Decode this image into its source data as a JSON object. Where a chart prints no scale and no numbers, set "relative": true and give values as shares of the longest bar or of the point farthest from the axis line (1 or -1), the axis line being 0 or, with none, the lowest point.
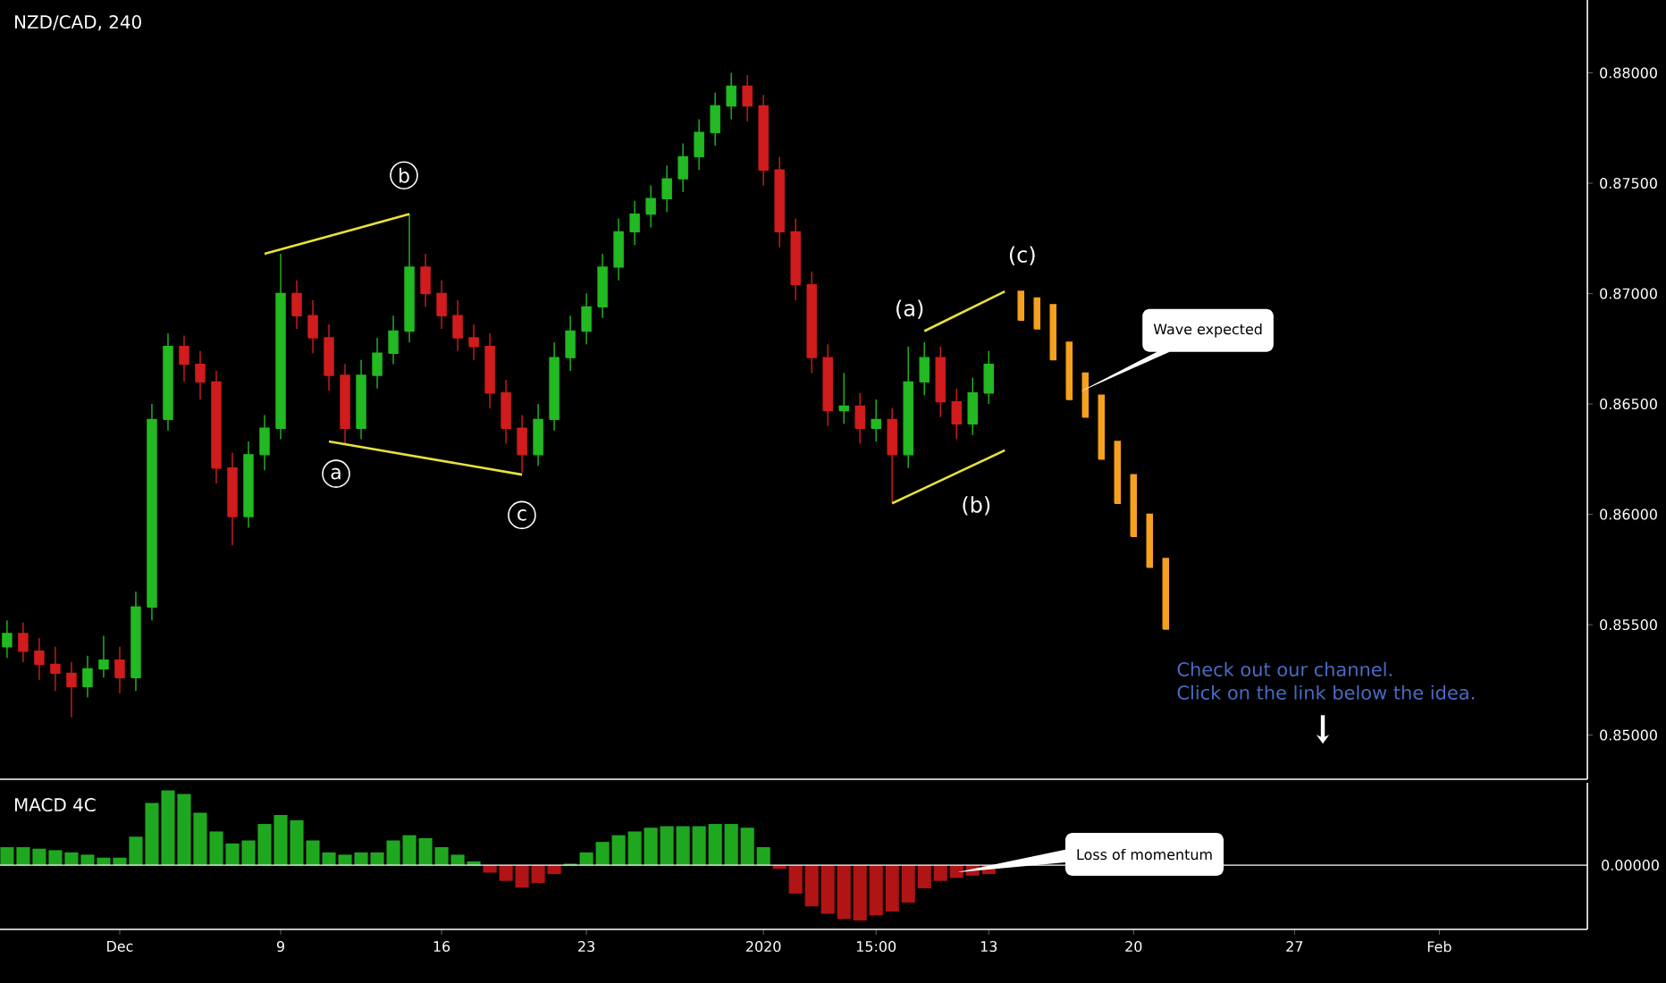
{
  "chart_data": [
    {
      "type": "candlestick",
      "title": "NZD/CAD, 240",
      "ylim": [
        0.848,
        0.8833
      ],
      "categories": [
        null,
        null,
        null,
        null,
        null,
        null,
        null,
        null,
        null,
        null,
        null,
        null,
        null,
        null,
        null,
        null,
        null,
        null,
        null,
        null,
        null,
        null,
        null,
        null,
        null,
        null,
        null,
        null,
        null,
        null,
        null,
        null,
        null,
        null,
        null,
        null,
        null,
        null,
        null,
        null,
        null,
        null,
        null,
        null,
        null,
        null,
        null,
        null,
        null,
        null,
        null,
        null,
        null,
        null,
        null,
        null,
        null,
        null,
        null,
        null,
        null,
        null,
        null,
        null,
        null,
        null,
        null,
        null,
        null,
        null,
        null,
        null,
        null,
        null,
        null,
        null,
        null,
        null,
        null,
        null,
        null,
        null,
        null,
        null,
        null,
        null,
        null,
        null,
        null,
        null,
        null,
        null,
        null,
        null,
        null,
        null,
        null,
        null,
        null
      ],
      "yticks": [
        {
          "value": 0.85,
          "label": "0.85000"
        },
        {
          "value": 0.855,
          "label": "0.85500"
        },
        {
          "value": 0.86,
          "label": "0.86000"
        },
        {
          "value": 0.865,
          "label": "0.86500"
        },
        {
          "value": 0.87,
          "label": "0.87000"
        },
        {
          "value": 0.875,
          "label": "0.87500"
        },
        {
          "value": 0.88,
          "label": "0.88000"
        }
      ],
      "tick_labels": "y",
      "series": [
        {
          "type": "candlestick",
          "ohlc": [
            [
              0.854,
              0.8552,
              0.8535,
              0.8546
            ],
            [
              0.8546,
              0.8551,
              0.8533,
              0.8538
            ],
            [
              0.8538,
              0.8544,
              0.8525,
              0.8532
            ],
            [
              0.8532,
              0.854,
              0.852,
              0.8528
            ],
            [
              0.8528,
              0.8533,
              0.8508,
              0.8522
            ],
            [
              0.8522,
              0.8536,
              0.8517,
              0.853
            ],
            [
              0.853,
              0.8545,
              0.8526,
              0.8534
            ],
            [
              0.8534,
              0.854,
              0.8519,
              0.8526
            ],
            [
              0.8526,
              0.8565,
              0.852,
              0.8558
            ],
            [
              0.8558,
              0.865,
              0.8552,
              0.8643
            ],
            [
              0.8643,
              0.8682,
              0.8638,
              0.8676
            ],
            [
              0.8676,
              0.8681,
              0.866,
              0.8668
            ],
            [
              0.8668,
              0.8674,
              0.8652,
              0.866
            ],
            [
              0.866,
              0.8665,
              0.8614,
              0.8621
            ],
            [
              0.8621,
              0.8628,
              0.8586,
              0.8599
            ],
            [
              0.8599,
              0.8633,
              0.8594,
              0.8627
            ],
            [
              0.8627,
              0.8645,
              0.862,
              0.8639
            ],
            [
              0.8639,
              0.8718,
              0.8634,
              0.87
            ],
            [
              0.87,
              0.8706,
              0.8684,
              0.869
            ],
            [
              0.869,
              0.8697,
              0.8673,
              0.868
            ],
            [
              0.868,
              0.8686,
              0.8656,
              0.8663
            ],
            [
              0.8663,
              0.8668,
              0.8632,
              0.8639
            ],
            [
              0.8639,
              0.867,
              0.8634,
              0.8663
            ],
            [
              0.8663,
              0.868,
              0.8657,
              0.8673
            ],
            [
              0.8673,
              0.869,
              0.8668,
              0.8683
            ],
            [
              0.8683,
              0.8736,
              0.8678,
              0.8712
            ],
            [
              0.8712,
              0.8718,
              0.8694,
              0.87
            ],
            [
              0.87,
              0.8706,
              0.8684,
              0.869
            ],
            [
              0.869,
              0.8697,
              0.8674,
              0.868
            ],
            [
              0.868,
              0.8686,
              0.867,
              0.8676
            ],
            [
              0.8676,
              0.8682,
              0.8648,
              0.8655
            ],
            [
              0.8655,
              0.8661,
              0.8632,
              0.8639
            ],
            [
              0.8639,
              0.8645,
              0.8619,
              0.8627
            ],
            [
              0.8627,
              0.865,
              0.8622,
              0.8643
            ],
            [
              0.8643,
              0.8678,
              0.8638,
              0.8671
            ],
            [
              0.8671,
              0.869,
              0.8665,
              0.8683
            ],
            [
              0.8683,
              0.87,
              0.8677,
              0.8694
            ],
            [
              0.8694,
              0.8718,
              0.8689,
              0.8712
            ],
            [
              0.8712,
              0.8734,
              0.8706,
              0.8728
            ],
            [
              0.8728,
              0.8742,
              0.8722,
              0.8736
            ],
            [
              0.8736,
              0.8749,
              0.873,
              0.8743
            ],
            [
              0.8743,
              0.8758,
              0.8737,
              0.8752
            ],
            [
              0.8752,
              0.8768,
              0.8746,
              0.8762
            ],
            [
              0.8762,
              0.8779,
              0.8756,
              0.8773
            ],
            [
              0.8773,
              0.8791,
              0.8767,
              0.8785
            ],
            [
              0.8785,
              0.88,
              0.8779,
              0.8794
            ],
            [
              0.8794,
              0.8799,
              0.8778,
              0.8785
            ],
            [
              0.8785,
              0.879,
              0.8749,
              0.8756
            ],
            [
              0.8756,
              0.8762,
              0.8721,
              0.8728
            ],
            [
              0.8728,
              0.8734,
              0.8697,
              0.8704
            ],
            [
              0.8704,
              0.871,
              0.8664,
              0.8671
            ],
            [
              0.8671,
              0.8677,
              0.864,
              0.8647
            ],
            [
              0.8647,
              0.8664,
              0.8641,
              0.8649
            ],
            [
              0.8649,
              0.8655,
              0.8632,
              0.8639
            ],
            [
              0.8639,
              0.8652,
              0.8633,
              0.8643
            ],
            [
              0.8643,
              0.8648,
              0.8605,
              0.8627
            ],
            [
              0.8627,
              0.8676,
              0.8621,
              0.866
            ],
            [
              0.866,
              0.8678,
              0.8654,
              0.8671
            ],
            [
              0.8671,
              0.8676,
              0.8644,
              0.8651
            ],
            [
              0.8651,
              0.8657,
              0.8634,
              0.8641
            ],
            [
              0.8641,
              0.8662,
              0.8636,
              0.8655
            ],
            [
              0.8655,
              0.8674,
              0.865,
              0.8668
            ],
            null,
            null,
            null,
            null,
            null,
            null,
            null,
            null,
            null,
            null,
            null,
            null,
            null,
            null,
            null,
            null,
            null,
            null,
            null,
            null,
            null,
            null,
            null,
            null,
            null,
            null,
            null,
            null,
            null,
            null,
            null,
            null,
            null,
            null,
            null,
            null,
            null
          ],
          "colors": [
            "#22b922",
            "#d01c1c",
            "#d01c1c",
            "#d01c1c",
            "#d01c1c",
            "#22b922",
            "#22b922",
            "#d01c1c",
            "#22b922",
            "#22b922",
            "#22b922",
            "#d01c1c",
            "#d01c1c",
            "#d01c1c",
            "#d01c1c",
            "#22b922",
            "#22b922",
            "#22b922",
            "#d01c1c",
            "#d01c1c",
            "#d01c1c",
            "#d01c1c",
            "#22b922",
            "#22b922",
            "#22b922",
            "#22b922",
            "#d01c1c",
            "#d01c1c",
            "#d01c1c",
            "#d01c1c",
            "#d01c1c",
            "#d01c1c",
            "#d01c1c",
            "#22b922",
            "#22b922",
            "#22b922",
            "#22b922",
            "#22b922",
            "#22b922",
            "#22b922",
            "#22b922",
            "#22b922",
            "#22b922",
            "#22b922",
            "#22b922",
            "#22b922",
            "#d01c1c",
            "#d01c1c",
            "#d01c1c",
            "#d01c1c",
            "#d01c1c",
            "#d01c1c",
            "#22b922",
            "#d01c1c",
            "#22b922",
            "#d01c1c",
            "#22b922",
            "#22b922",
            "#d01c1c",
            "#d01c1c",
            "#22b922",
            "#22b922",
            null,
            null,
            null,
            null,
            null,
            null,
            null,
            null,
            null,
            null,
            null,
            null,
            null,
            null,
            null,
            null,
            null,
            null,
            null,
            null,
            null,
            null,
            null,
            null,
            null,
            null,
            null,
            null,
            null,
            null,
            null,
            null,
            null,
            null,
            null,
            null,
            null
          ]
        },
        {
          "type": "candlestick",
          "color": "#f5a11f",
          "ohlc": [
            null,
            null,
            null,
            null,
            null,
            null,
            null,
            null,
            null,
            null,
            null,
            null,
            null,
            null,
            null,
            null,
            null,
            null,
            null,
            null,
            null,
            null,
            null,
            null,
            null,
            null,
            null,
            null,
            null,
            null,
            null,
            null,
            null,
            null,
            null,
            null,
            null,
            null,
            null,
            null,
            null,
            null,
            null,
            null,
            null,
            null,
            null,
            null,
            null,
            null,
            null,
            null,
            null,
            null,
            null,
            null,
            null,
            null,
            null,
            null,
            null,
            null,
            null,
            [
              0.8701,
              0.8701,
              0.8688,
              0.8688
            ],
            [
              0.8698,
              0.8698,
              0.8684,
              0.8684
            ],
            [
              0.8695,
              0.8695,
              0.867,
              0.867
            ],
            [
              0.8678,
              0.8678,
              0.8652,
              0.8652
            ],
            [
              0.8664,
              0.8664,
              0.8644,
              0.8644
            ],
            [
              0.8654,
              0.8654,
              0.8625,
              0.8625
            ],
            [
              0.8633,
              0.8633,
              0.8605,
              0.8605
            ],
            [
              0.8618,
              0.8618,
              0.859,
              0.859
            ],
            [
              0.86,
              0.86,
              0.8576,
              0.8576
            ],
            [
              0.858,
              0.858,
              0.8548,
              0.8548
            ],
            null,
            null,
            null,
            null,
            null,
            null,
            null,
            null,
            null,
            null,
            null,
            null,
            null,
            null,
            null,
            null,
            null,
            null,
            null,
            null,
            null,
            null,
            null,
            null,
            null,
            null
          ]
        },
        {
          "type": "line",
          "color": "#e8e23a",
          "values": [
            null,
            null,
            null,
            null,
            null,
            null,
            null,
            null,
            null,
            null,
            null,
            null,
            null,
            null,
            null,
            null,
            0.8718,
            null,
            null,
            null,
            null,
            null,
            null,
            null,
            null,
            0.8736,
            null,
            null,
            null,
            null,
            null,
            null,
            null,
            null,
            null,
            null,
            null,
            null,
            null,
            null,
            null,
            null,
            null,
            null,
            null,
            null,
            null,
            null,
            null,
            null,
            null,
            null,
            null,
            null,
            null,
            null,
            null,
            null,
            null,
            null,
            null,
            null,
            null,
            null,
            null,
            null,
            null,
            null,
            null,
            null,
            null,
            null,
            null,
            null,
            null,
            null,
            null,
            null,
            null,
            null,
            null,
            null,
            null,
            null,
            null,
            null,
            null,
            null,
            null,
            null,
            null,
            null,
            null,
            null,
            null,
            null,
            null,
            null,
            null
          ]
        },
        {
          "type": "line",
          "color": "#e8e23a",
          "values": [
            null,
            null,
            null,
            null,
            null,
            null,
            null,
            null,
            null,
            null,
            null,
            null,
            null,
            null,
            null,
            null,
            null,
            null,
            null,
            null,
            0.8633,
            null,
            null,
            null,
            null,
            null,
            null,
            null,
            null,
            null,
            null,
            null,
            0.8618,
            null,
            null,
            null,
            null,
            null,
            null,
            null,
            null,
            null,
            null,
            null,
            null,
            null,
            null,
            null,
            null,
            null,
            null,
            null,
            null,
            null,
            null,
            null,
            null,
            null,
            null,
            null,
            null,
            null,
            null,
            null,
            null,
            null,
            null,
            null,
            null,
            null,
            null,
            null,
            null,
            null,
            null,
            null,
            null,
            null,
            null,
            null,
            null,
            null,
            null,
            null,
            null,
            null,
            null,
            null,
            null,
            null,
            null,
            null,
            null,
            null,
            null,
            null,
            null,
            null,
            null
          ]
        },
        {
          "type": "line",
          "color": "#e8e23a",
          "values": [
            null,
            null,
            null,
            null,
            null,
            null,
            null,
            null,
            null,
            null,
            null,
            null,
            null,
            null,
            null,
            null,
            null,
            null,
            null,
            null,
            null,
            null,
            null,
            null,
            null,
            null,
            null,
            null,
            null,
            null,
            null,
            null,
            null,
            null,
            null,
            null,
            null,
            null,
            null,
            null,
            null,
            null,
            null,
            null,
            null,
            null,
            null,
            null,
            null,
            null,
            null,
            null,
            null,
            null,
            null,
            null,
            null,
            0.8683,
            null,
            null,
            null,
            null,
            0.8701,
            null,
            null,
            null,
            null,
            null,
            null,
            null,
            null,
            null,
            null,
            null,
            null,
            null,
            null,
            null,
            null,
            null,
            null,
            null,
            null,
            null,
            null,
            null,
            null,
            null,
            null,
            null,
            null,
            null,
            null,
            null,
            null,
            null,
            null,
            null,
            null
          ]
        },
        {
          "type": "line",
          "color": "#e8e23a",
          "values": [
            null,
            null,
            null,
            null,
            null,
            null,
            null,
            null,
            null,
            null,
            null,
            null,
            null,
            null,
            null,
            null,
            null,
            null,
            null,
            null,
            null,
            null,
            null,
            null,
            null,
            null,
            null,
            null,
            null,
            null,
            null,
            null,
            null,
            null,
            null,
            null,
            null,
            null,
            null,
            null,
            null,
            null,
            null,
            null,
            null,
            null,
            null,
            null,
            null,
            null,
            null,
            null,
            null,
            null,
            null,
            0.8605,
            null,
            null,
            null,
            null,
            null,
            null,
            0.8629,
            null,
            null,
            null,
            null,
            null,
            null,
            null,
            null,
            null,
            null,
            null,
            null,
            null,
            null,
            null,
            null,
            null,
            null,
            null,
            null,
            null,
            null,
            null,
            null,
            null,
            null,
            null,
            null,
            null,
            null,
            null,
            null,
            null,
            null,
            null,
            null
          ]
        }
      ],
      "annotations": [
        "b",
        "a",
        "c",
        "(a)",
        "(b)",
        "(c)",
        "Wave expected",
        "Check out our channel.",
        "Click on the link below the idea."
      ]
    },
    {
      "type": "bar",
      "title": "MACD 4C",
      "relative": true,
      "tick_labels": "x",
      "categories": [
        null,
        null,
        null,
        null,
        null,
        null,
        null,
        "Dec",
        null,
        null,
        null,
        null,
        null,
        null,
        null,
        null,
        null,
        "9",
        null,
        null,
        null,
        null,
        null,
        null,
        null,
        null,
        null,
        "16",
        null,
        null,
        null,
        null,
        null,
        null,
        null,
        null,
        "23",
        null,
        null,
        null,
        null,
        null,
        null,
        null,
        null,
        null,
        null,
        "2020",
        null,
        null,
        null,
        null,
        null,
        null,
        "15:00",
        null,
        null,
        null,
        null,
        null,
        null,
        "13",
        null,
        null,
        null,
        null,
        null,
        null,
        null,
        null,
        "20",
        null,
        null,
        null,
        null,
        null,
        null,
        null,
        null,
        null,
        "27",
        null,
        null,
        null,
        null,
        null,
        null,
        null,
        null,
        "Feb",
        null,
        null,
        null,
        null,
        null,
        null,
        null,
        null,
        null
      ],
      "values": [
        0.24,
        0.24,
        0.22,
        0.2,
        0.17,
        0.14,
        0.1,
        0.1,
        0.38,
        0.83,
        1.0,
        0.95,
        0.7,
        0.45,
        0.29,
        0.33,
        0.55,
        0.67,
        0.6,
        0.33,
        0.17,
        0.14,
        0.17,
        0.17,
        0.33,
        0.4,
        0.36,
        0.24,
        0.14,
        0.05,
        -0.1,
        -0.21,
        -0.3,
        -0.24,
        -0.12,
        0.02,
        0.17,
        0.31,
        0.4,
        0.45,
        0.5,
        0.52,
        0.52,
        0.52,
        0.55,
        0.55,
        0.5,
        0.24,
        -0.05,
        -0.38,
        -0.55,
        -0.65,
        -0.72,
        -0.74,
        -0.67,
        -0.62,
        -0.5,
        -0.31,
        -0.21,
        -0.17,
        -0.14,
        -0.12,
        null,
        null,
        null,
        null,
        null,
        null,
        null,
        null,
        null,
        null,
        null,
        null,
        null,
        null,
        null,
        null,
        null,
        null,
        null,
        null,
        null,
        null,
        null,
        null,
        null,
        null,
        null,
        null,
        null,
        null,
        null,
        null,
        null,
        null,
        null,
        null,
        null
      ],
      "colors": [
        "#1fa81f",
        "#1fa81f",
        "#1fa81f",
        "#1fa81f",
        "#1fa81f",
        "#1fa81f",
        "#1fa81f",
        "#1fa81f",
        "#1fa81f",
        "#1fa81f",
        "#1fa81f",
        "#1fa81f",
        "#1fa81f",
        "#1fa81f",
        "#1fa81f",
        "#1fa81f",
        "#1fa81f",
        "#1fa81f",
        "#1fa81f",
        "#1fa81f",
        "#1fa81f",
        "#1fa81f",
        "#1fa81f",
        "#1fa81f",
        "#1fa81f",
        "#1fa81f",
        "#1fa81f",
        "#1fa81f",
        "#1fa81f",
        "#1fa81f",
        "#b01414",
        "#b01414",
        "#b01414",
        "#b01414",
        "#b01414",
        "#1fa81f",
        "#1fa81f",
        "#1fa81f",
        "#1fa81f",
        "#1fa81f",
        "#1fa81f",
        "#1fa81f",
        "#1fa81f",
        "#1fa81f",
        "#1fa81f",
        "#1fa81f",
        "#1fa81f",
        "#1fa81f",
        "#b01414",
        "#b01414",
        "#b01414",
        "#b01414",
        "#b01414",
        "#b01414",
        "#b01414",
        "#b01414",
        "#b01414",
        "#b01414",
        "#b01414",
        "#b01414",
        "#b01414",
        "#b01414",
        null,
        null,
        null,
        null,
        null,
        null,
        null,
        null,
        null,
        null,
        null,
        null,
        null,
        null,
        null,
        null,
        null,
        null,
        null,
        null,
        null,
        null,
        null,
        null,
        null,
        null,
        null,
        null,
        null,
        null,
        null,
        null,
        null,
        null,
        null,
        null,
        null
      ],
      "ref_lines": [
        {
          "axis": "y",
          "value": 0,
          "label": "0.00000",
          "color": "#ffffff"
        }
      ],
      "annotations": [
        "Loss of momentum"
      ]
    }
  ]
}
